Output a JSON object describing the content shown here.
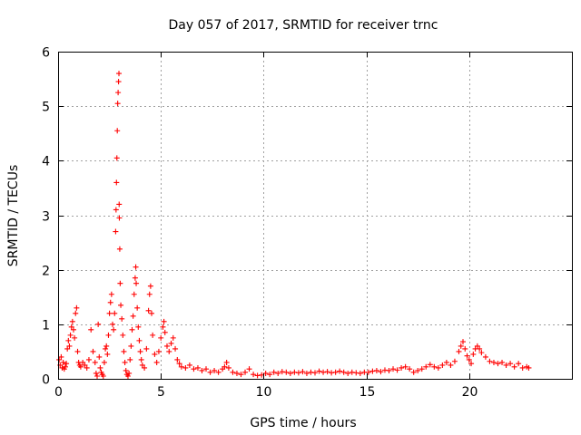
{
  "chart_data": {
    "type": "scatter",
    "title": "Day 057 of 2017, SRMTID for receiver trnc",
    "xlabel": "GPS time / hours",
    "ylabel": "SRMTID / TECUs",
    "xlim": [
      0,
      25
    ],
    "ylim": [
      0,
      6
    ],
    "xticks": [
      0,
      5,
      10,
      15,
      20
    ],
    "yticks": [
      0,
      1,
      2,
      3,
      4,
      5,
      6
    ],
    "xtick_labels": [
      "0",
      "5",
      "10",
      "15",
      "20"
    ],
    "ytick_labels": [
      "0",
      "1",
      "2",
      "3",
      "4",
      "5",
      "6"
    ],
    "grid": true,
    "marker": "+",
    "color": "#ff0000",
    "series": [
      {
        "name": "SRMTID",
        "points": [
          [
            0.05,
            0.35
          ],
          [
            0.1,
            0.25
          ],
          [
            0.15,
            0.4
          ],
          [
            0.2,
            0.2
          ],
          [
            0.25,
            0.3
          ],
          [
            0.3,
            0.18
          ],
          [
            0.35,
            0.22
          ],
          [
            0.4,
            0.28
          ],
          [
            0.45,
            0.55
          ],
          [
            0.5,
            0.7
          ],
          [
            0.55,
            0.6
          ],
          [
            0.6,
            0.8
          ],
          [
            0.65,
            0.95
          ],
          [
            0.7,
            1.05
          ],
          [
            0.75,
            0.9
          ],
          [
            0.8,
            0.75
          ],
          [
            0.85,
            1.2
          ],
          [
            0.9,
            1.3
          ],
          [
            0.95,
            0.5
          ],
          [
            1.0,
            0.3
          ],
          [
            1.05,
            0.25
          ],
          [
            1.1,
            0.22
          ],
          [
            1.2,
            0.3
          ],
          [
            1.3,
            0.25
          ],
          [
            1.4,
            0.2
          ],
          [
            1.5,
            0.35
          ],
          [
            1.6,
            0.9
          ],
          [
            1.7,
            0.5
          ],
          [
            1.8,
            0.3
          ],
          [
            1.85,
            0.1
          ],
          [
            1.9,
            0.05
          ],
          [
            1.95,
            1.0
          ],
          [
            2.0,
            0.4
          ],
          [
            2.05,
            0.2
          ],
          [
            2.1,
            0.12
          ],
          [
            2.15,
            0.08
          ],
          [
            2.2,
            0.05
          ],
          [
            2.25,
            0.3
          ],
          [
            2.3,
            0.55
          ],
          [
            2.35,
            0.6
          ],
          [
            2.4,
            0.45
          ],
          [
            2.45,
            0.8
          ],
          [
            2.5,
            1.2
          ],
          [
            2.55,
            1.4
          ],
          [
            2.6,
            1.55
          ],
          [
            2.65,
            1.0
          ],
          [
            2.7,
            0.9
          ],
          [
            2.75,
            1.2
          ],
          [
            2.8,
            2.7
          ],
          [
            2.82,
            3.1
          ],
          [
            2.84,
            3.6
          ],
          [
            2.86,
            4.05
          ],
          [
            2.88,
            4.55
          ],
          [
            2.9,
            5.05
          ],
          [
            2.92,
            5.25
          ],
          [
            2.94,
            5.45
          ],
          [
            2.96,
            5.6
          ],
          [
            2.97,
            3.2
          ],
          [
            2.98,
            2.95
          ],
          [
            3.0,
            2.38
          ],
          [
            3.02,
            1.75
          ],
          [
            3.05,
            1.35
          ],
          [
            3.1,
            1.1
          ],
          [
            3.15,
            0.8
          ],
          [
            3.2,
            0.5
          ],
          [
            3.25,
            0.3
          ],
          [
            3.3,
            0.15
          ],
          [
            3.35,
            0.08
          ],
          [
            3.4,
            0.05
          ],
          [
            3.45,
            0.1
          ],
          [
            3.5,
            0.35
          ],
          [
            3.55,
            0.6
          ],
          [
            3.6,
            0.9
          ],
          [
            3.65,
            1.15
          ],
          [
            3.7,
            1.55
          ],
          [
            3.75,
            1.85
          ],
          [
            3.78,
            2.05
          ],
          [
            3.8,
            1.75
          ],
          [
            3.85,
            1.3
          ],
          [
            3.9,
            0.95
          ],
          [
            3.95,
            0.7
          ],
          [
            4.0,
            0.5
          ],
          [
            4.05,
            0.35
          ],
          [
            4.1,
            0.25
          ],
          [
            4.2,
            0.2
          ],
          [
            4.3,
            0.55
          ],
          [
            4.4,
            1.25
          ],
          [
            4.45,
            1.55
          ],
          [
            4.5,
            1.7
          ],
          [
            4.55,
            1.2
          ],
          [
            4.6,
            0.8
          ],
          [
            4.7,
            0.45
          ],
          [
            4.8,
            0.3
          ],
          [
            4.9,
            0.5
          ],
          [
            5.0,
            0.75
          ],
          [
            5.1,
            0.95
          ],
          [
            5.15,
            1.05
          ],
          [
            5.2,
            0.85
          ],
          [
            5.3,
            0.6
          ],
          [
            5.4,
            0.5
          ],
          [
            5.5,
            0.65
          ],
          [
            5.6,
            0.75
          ],
          [
            5.7,
            0.55
          ],
          [
            5.8,
            0.35
          ],
          [
            5.9,
            0.28
          ],
          [
            6.0,
            0.22
          ],
          [
            6.2,
            0.2
          ],
          [
            6.4,
            0.25
          ],
          [
            6.6,
            0.18
          ],
          [
            6.8,
            0.2
          ],
          [
            7.0,
            0.15
          ],
          [
            7.2,
            0.18
          ],
          [
            7.4,
            0.12
          ],
          [
            7.6,
            0.15
          ],
          [
            7.8,
            0.12
          ],
          [
            8.0,
            0.18
          ],
          [
            8.1,
            0.22
          ],
          [
            8.2,
            0.3
          ],
          [
            8.3,
            0.2
          ],
          [
            8.5,
            0.12
          ],
          [
            8.7,
            0.1
          ],
          [
            8.9,
            0.08
          ],
          [
            9.1,
            0.12
          ],
          [
            9.3,
            0.18
          ],
          [
            9.5,
            0.08
          ],
          [
            9.7,
            0.06
          ],
          [
            9.9,
            0.07
          ],
          [
            10.1,
            0.1
          ],
          [
            10.3,
            0.08
          ],
          [
            10.5,
            0.12
          ],
          [
            10.7,
            0.1
          ],
          [
            10.9,
            0.13
          ],
          [
            11.1,
            0.12
          ],
          [
            11.3,
            0.1
          ],
          [
            11.5,
            0.12
          ],
          [
            11.7,
            0.11
          ],
          [
            11.9,
            0.13
          ],
          [
            12.1,
            0.1
          ],
          [
            12.3,
            0.12
          ],
          [
            12.5,
            0.11
          ],
          [
            12.7,
            0.14
          ],
          [
            12.9,
            0.12
          ],
          [
            13.1,
            0.13
          ],
          [
            13.3,
            0.11
          ],
          [
            13.5,
            0.12
          ],
          [
            13.7,
            0.14
          ],
          [
            13.9,
            0.12
          ],
          [
            14.1,
            0.1
          ],
          [
            14.3,
            0.12
          ],
          [
            14.5,
            0.11
          ],
          [
            14.7,
            0.1
          ],
          [
            14.9,
            0.12
          ],
          [
            15.1,
            0.12
          ],
          [
            15.3,
            0.14
          ],
          [
            15.5,
            0.15
          ],
          [
            15.7,
            0.13
          ],
          [
            15.9,
            0.16
          ],
          [
            16.1,
            0.15
          ],
          [
            16.3,
            0.18
          ],
          [
            16.5,
            0.16
          ],
          [
            16.7,
            0.2
          ],
          [
            16.9,
            0.22
          ],
          [
            17.1,
            0.18
          ],
          [
            17.3,
            0.12
          ],
          [
            17.5,
            0.15
          ],
          [
            17.7,
            0.18
          ],
          [
            17.9,
            0.22
          ],
          [
            18.1,
            0.26
          ],
          [
            18.3,
            0.22
          ],
          [
            18.5,
            0.2
          ],
          [
            18.7,
            0.25
          ],
          [
            18.9,
            0.3
          ],
          [
            19.1,
            0.25
          ],
          [
            19.3,
            0.32
          ],
          [
            19.5,
            0.5
          ],
          [
            19.6,
            0.6
          ],
          [
            19.7,
            0.68
          ],
          [
            19.8,
            0.55
          ],
          [
            19.9,
            0.42
          ],
          [
            20.0,
            0.35
          ],
          [
            20.1,
            0.28
          ],
          [
            20.2,
            0.45
          ],
          [
            20.3,
            0.55
          ],
          [
            20.4,
            0.6
          ],
          [
            20.5,
            0.55
          ],
          [
            20.6,
            0.48
          ],
          [
            20.8,
            0.4
          ],
          [
            21.0,
            0.32
          ],
          [
            21.2,
            0.3
          ],
          [
            21.4,
            0.28
          ],
          [
            21.6,
            0.3
          ],
          [
            21.8,
            0.25
          ],
          [
            22.0,
            0.28
          ],
          [
            22.2,
            0.22
          ],
          [
            22.4,
            0.28
          ],
          [
            22.6,
            0.2
          ],
          [
            22.8,
            0.22
          ],
          [
            22.9,
            0.2
          ]
        ]
      }
    ]
  }
}
